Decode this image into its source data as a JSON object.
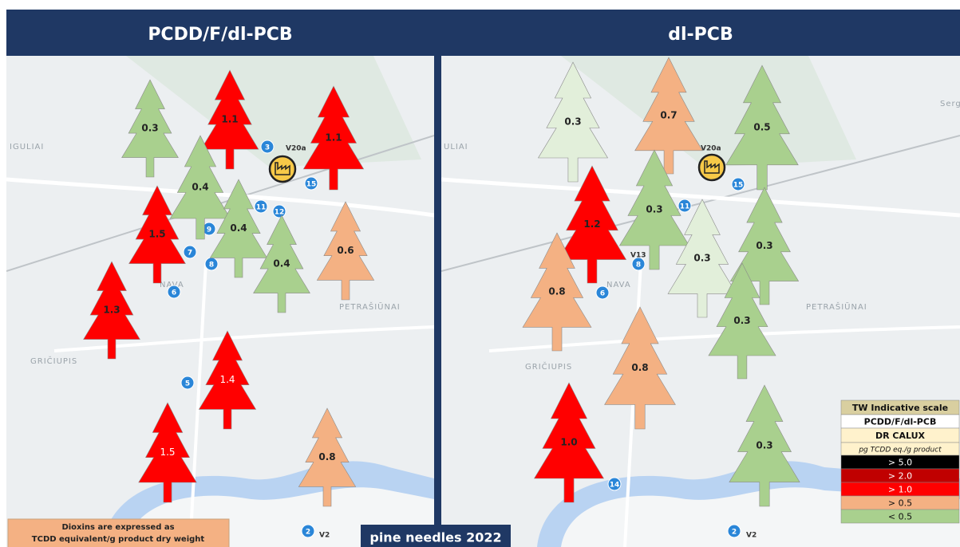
{
  "panels": [
    {
      "title": "PCDD/F/dl-PCB",
      "trees": [
        {
          "label": "0.3",
          "color": "#a9d08e"
        },
        {
          "label": "1.1",
          "color": "#ff0000"
        },
        {
          "label": "1.1",
          "color": "#ff0000"
        },
        {
          "label": "0.4",
          "color": "#a9d08e"
        },
        {
          "label": "1.5",
          "color": "#ff0000"
        },
        {
          "label": "0.4",
          "color": "#a9d08e"
        },
        {
          "label": "0.4",
          "color": "#a9d08e"
        },
        {
          "label": "0.6",
          "color": "#f4b183"
        },
        {
          "label": "1.3",
          "color": "#ff0000"
        },
        {
          "label": "1.4",
          "color": "#ff0000"
        },
        {
          "label": "1.5",
          "color": "#ff0000"
        },
        {
          "label": "0.8",
          "color": "#f4b183"
        }
      ],
      "places": [
        "IGULIAI",
        "NAVA",
        "PETRAŠIŪNAI",
        "GRIČIUPIS"
      ],
      "sites": [
        "3",
        "15",
        "11",
        "12",
        "9",
        "7",
        "8",
        "6",
        "5",
        "2"
      ],
      "site_codes": [
        "V20a",
        "V2"
      ]
    },
    {
      "title": "dl-PCB",
      "trees": [
        {
          "label": "0.3",
          "color": "#e2efda"
        },
        {
          "label": "0.7",
          "color": "#f4b183"
        },
        {
          "label": "0.5",
          "color": "#a9d08e"
        },
        {
          "label": "1.2",
          "color": "#ff0000"
        },
        {
          "label": "0.3",
          "color": "#a9d08e"
        },
        {
          "label": "0.3",
          "color": "#e2efda"
        },
        {
          "label": "0.3",
          "color": "#a9d08e"
        },
        {
          "label": "0.8",
          "color": "#f4b183"
        },
        {
          "label": "0.3",
          "color": "#a9d08e"
        },
        {
          "label": "0.8",
          "color": "#f4b183"
        },
        {
          "label": "1.0",
          "color": "#ff0000"
        },
        {
          "label": "0.3",
          "color": "#a9d08e"
        }
      ],
      "places": [
        "ULIAI",
        "NAVA",
        "PETRAŠIŪNAI",
        "GRIČIUPIS",
        "Serge"
      ],
      "sites": [
        "11",
        "15",
        "8",
        "6",
        "14",
        "2"
      ],
      "site_codes": [
        "V20a",
        "V13",
        "V2"
      ]
    }
  ],
  "legend": {
    "rows": [
      {
        "label": "TW Indicative scale",
        "color": "#d9cfa0"
      },
      {
        "label": "PCDD/F/dl-PCB",
        "color": "#ffffff"
      },
      {
        "label": "DR CALUX",
        "color": "#fff2cc"
      },
      {
        "label": "pg TCDD eq./g product",
        "color": "#fff2cc"
      },
      {
        "label": "> 5.0",
        "color": "#000000"
      },
      {
        "label": "> 2.0",
        "color": "#c00000"
      },
      {
        "label": "> 1.0",
        "color": "#ff0000"
      },
      {
        "label": "> 0.5",
        "color": "#f4b183"
      },
      {
        "label": "< 0.5",
        "color": "#a9d08e"
      }
    ]
  },
  "note": [
    "Dioxins are expressed as",
    "TCDD equivalent/g product dry weight"
  ],
  "footer": "pine needles 2022"
}
